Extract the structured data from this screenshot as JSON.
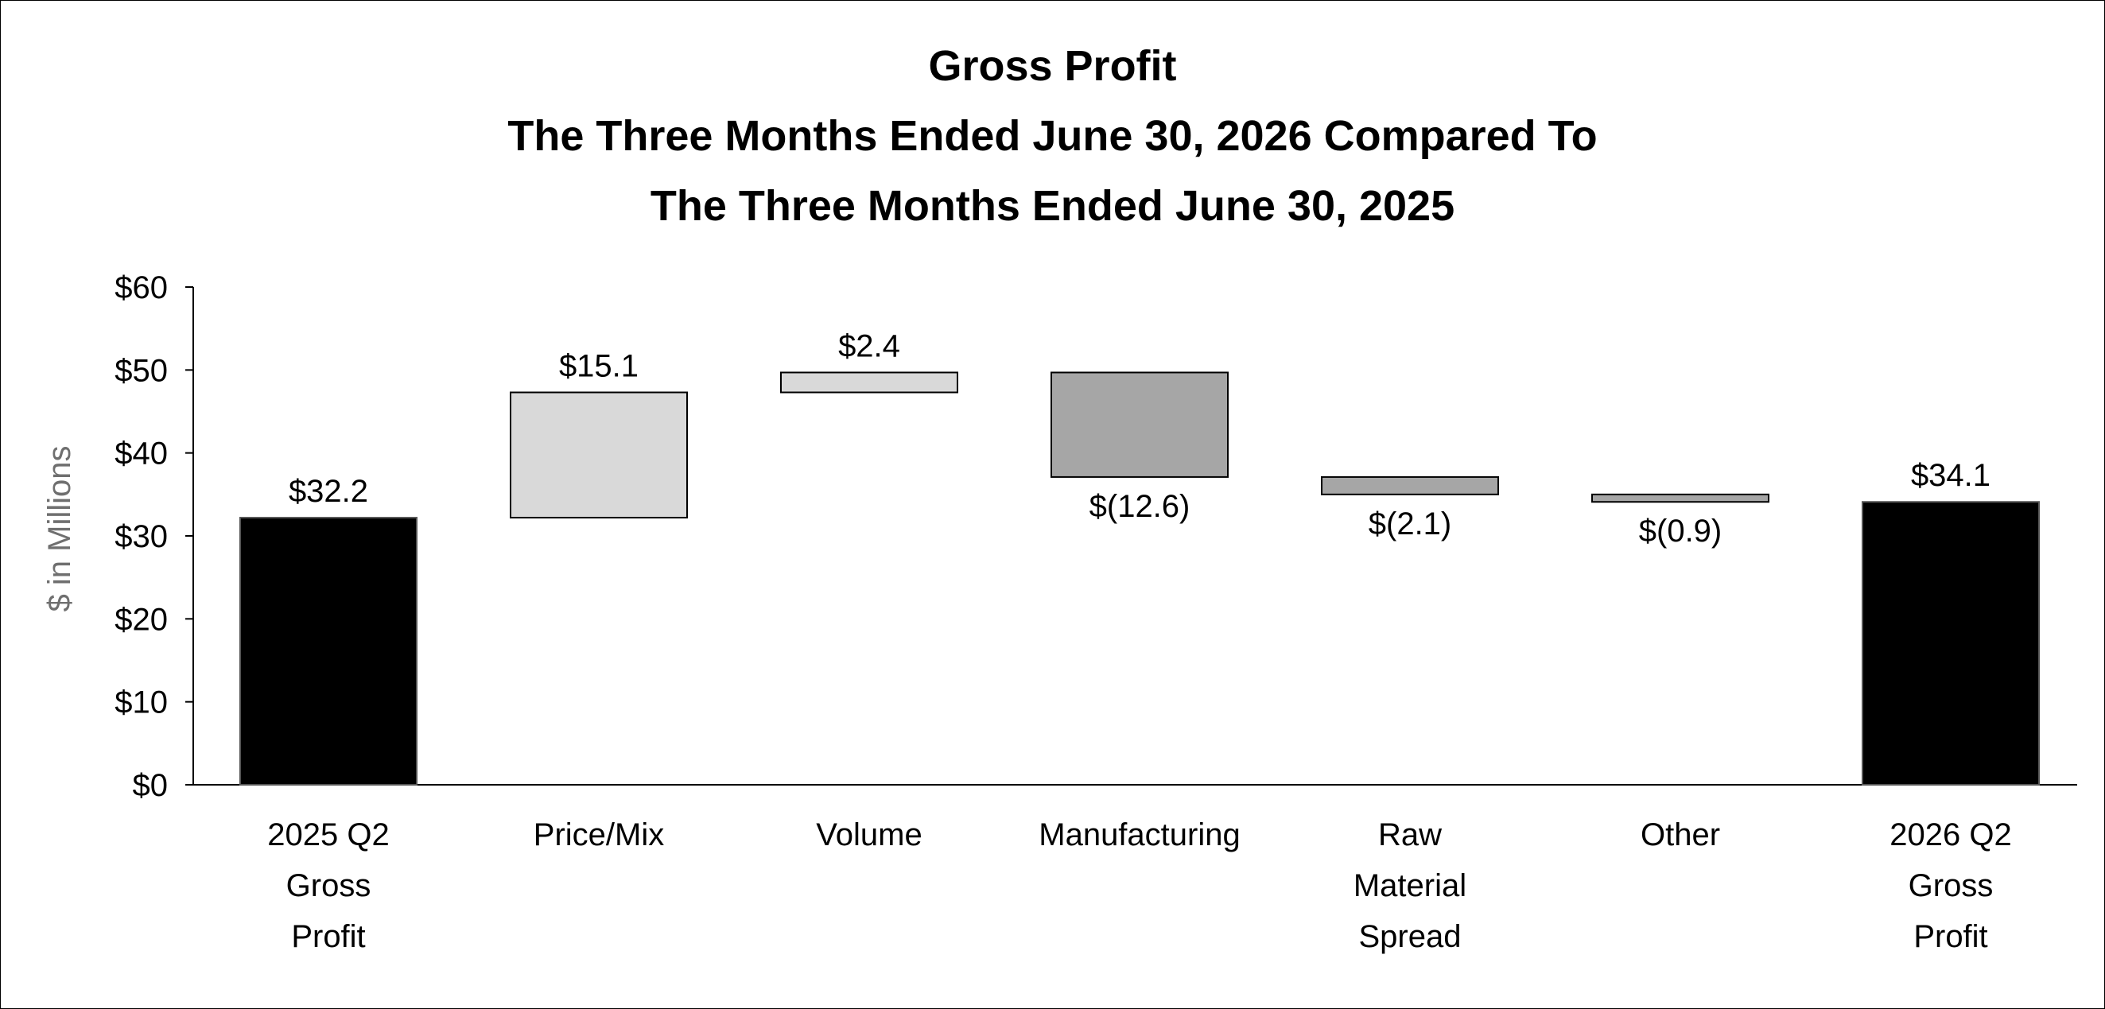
{
  "chart_data": {
    "type": "bar",
    "subtype": "waterfall",
    "title": "Gross Profit",
    "subtitle": [
      "The Three Months Ended June 30, 2026 Compared To",
      "The Three Months Ended June 30, 2025"
    ],
    "ylabel": "$ in Millions",
    "xlabel": "",
    "ylim": [
      0,
      60
    ],
    "yticks": [
      0,
      10,
      20,
      30,
      40,
      50,
      60
    ],
    "ytick_labels": [
      "$0",
      "$10",
      "$20",
      "$30",
      "$40",
      "$50",
      "$60"
    ],
    "grid": false,
    "categories": [
      [
        "2025 Q2",
        "Gross",
        "Profit"
      ],
      [
        "Price/Mix"
      ],
      [
        "Volume"
      ],
      [
        "Manufacturing"
      ],
      [
        "Raw",
        "Material",
        "Spread"
      ],
      [
        "Other"
      ],
      [
        "2026 Q2",
        "Gross",
        "Profit"
      ]
    ],
    "values": [
      32.2,
      15.1,
      2.4,
      -12.6,
      -2.1,
      -0.9,
      34.1
    ],
    "kinds": [
      "total",
      "delta",
      "delta",
      "delta",
      "delta",
      "delta",
      "total"
    ],
    "data_labels": [
      "$32.2",
      "$15.1",
      "$2.4",
      "$(12.6)",
      "$(2.1)",
      "$(0.9)",
      "$34.1"
    ],
    "colors": {
      "total": "#000000",
      "increase": "#d9d9d9",
      "decrease": "#a6a6a6",
      "outline": "#000000"
    }
  }
}
